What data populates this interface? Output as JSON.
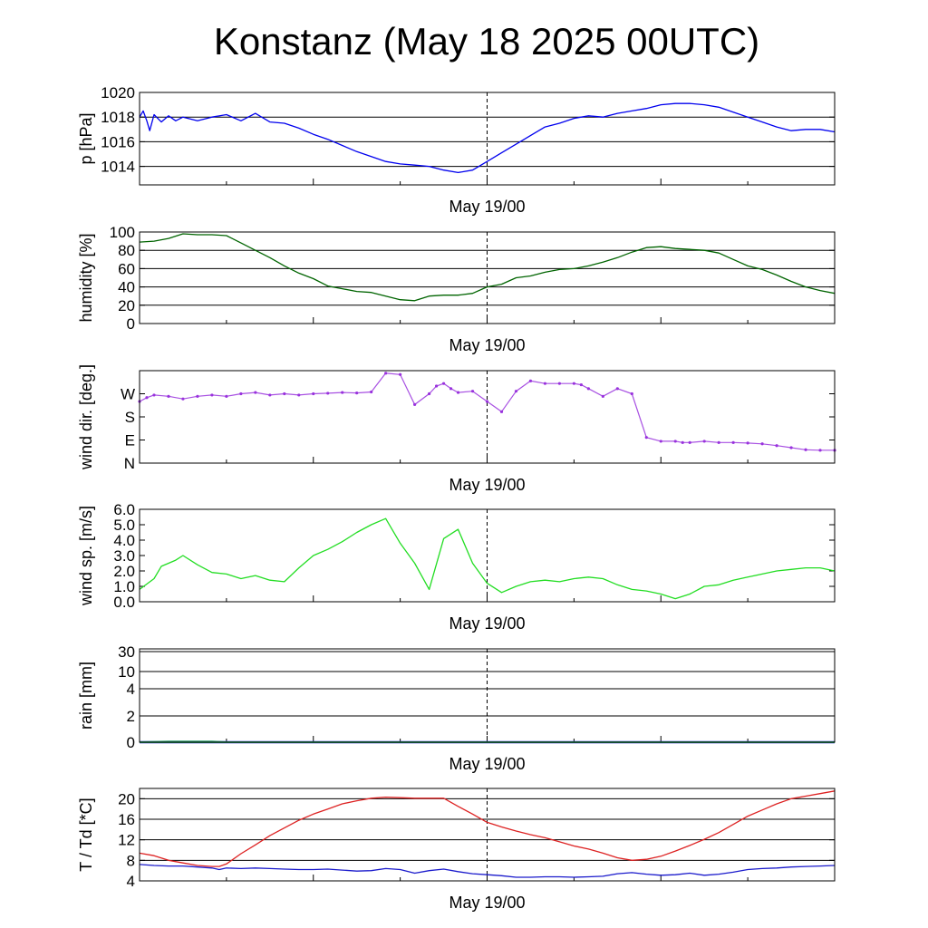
{
  "title": "Konstanz (May 18 2025 00UTC)",
  "time_axis": {
    "label": "May 19/00",
    "range_hours": [
      0,
      48
    ],
    "marker_hour": 24
  },
  "chart_data": [
    {
      "id": "pressure",
      "type": "line",
      "ylabel": "p [hPa]",
      "ylim": [
        1012.5,
        1020
      ],
      "yticks": [
        1014,
        1016,
        1018,
        1020
      ],
      "tick_labels": [
        "1014",
        "1016",
        "1018",
        "1020"
      ],
      "gridlines": [
        1014,
        1016,
        1018
      ],
      "x": [
        0,
        0.25,
        0.5,
        0.7,
        1,
        1.5,
        2,
        2.5,
        3,
        4,
        5,
        6,
        7,
        8,
        9,
        10,
        11,
        12,
        13,
        14,
        15,
        16,
        17,
        18,
        19,
        20,
        21,
        22,
        23,
        24,
        25,
        26,
        27,
        28,
        29,
        30,
        31,
        32,
        33,
        34,
        35,
        36,
        37,
        38,
        39,
        40,
        41,
        42,
        43,
        44,
        45,
        46,
        47,
        48
      ],
      "series": [
        {
          "color": "#0000ee",
          "values": [
            1018,
            1018.5,
            1017.7,
            1016.9,
            1018.2,
            1017.6,
            1018.1,
            1017.7,
            1018,
            1017.7,
            1018,
            1018.2,
            1017.7,
            1018.3,
            1017.6,
            1017.5,
            1017.1,
            1016.6,
            1016.2,
            1015.7,
            1015.2,
            1014.8,
            1014.4,
            1014.2,
            1014.1,
            1014,
            1013.7,
            1013.5,
            1013.7,
            1014.4,
            1015.1,
            1015.8,
            1016.5,
            1017.2,
            1017.5,
            1017.9,
            1018.1,
            1018,
            1018.3,
            1018.5,
            1018.7,
            1019,
            1019.1,
            1019.1,
            1019,
            1018.8,
            1018.4,
            1018,
            1017.6,
            1017.2,
            1016.9,
            1017.0,
            1017.0,
            1016.8
          ]
        }
      ]
    },
    {
      "id": "humidity",
      "type": "line",
      "ylabel": "humidity [%]",
      "ylim": [
        0,
        100
      ],
      "yticks": [
        0,
        20,
        40,
        60,
        80,
        100
      ],
      "tick_labels": [
        "0",
        "20",
        "40",
        "60",
        "80",
        "100"
      ],
      "gridlines": [
        20,
        40,
        60,
        80
      ],
      "x": [
        0,
        1,
        2,
        3,
        4,
        5,
        6,
        7,
        8,
        9,
        10,
        11,
        12,
        13,
        14,
        15,
        16,
        17,
        18,
        19,
        20,
        21,
        22,
        23,
        24,
        25,
        26,
        27,
        28,
        29,
        30,
        31,
        32,
        33,
        34,
        35,
        36,
        37,
        38,
        39,
        40,
        41,
        42,
        43,
        44,
        45,
        46,
        47,
        48
      ],
      "series": [
        {
          "color": "#006400",
          "values": [
            89,
            90,
            93,
            98,
            97,
            97,
            96,
            88,
            80,
            72,
            63,
            55,
            49,
            41,
            38,
            35,
            34,
            30,
            26,
            25,
            30,
            31,
            31,
            33,
            40,
            43,
            50,
            52,
            56,
            59,
            60,
            63,
            67,
            72,
            78,
            83,
            84,
            82,
            81,
            80,
            77,
            70,
            63,
            59,
            53,
            46,
            40,
            36,
            33
          ]
        }
      ]
    },
    {
      "id": "wind_direction",
      "type": "scatter",
      "ylabel": "wind dir. [deg.]",
      "ylim": [
        0,
        360
      ],
      "yticks": [
        0,
        90,
        180,
        270
      ],
      "tick_labels": [
        "N",
        "E",
        "S",
        "W"
      ],
      "gridlines": [],
      "x": [
        0,
        0.5,
        1,
        2,
        3,
        4,
        5,
        6,
        7,
        8,
        9,
        10,
        11,
        12,
        13,
        14,
        15,
        16,
        17,
        18,
        19,
        20,
        20.5,
        21,
        21.5,
        22,
        23,
        24,
        25,
        26,
        27,
        28,
        29,
        30,
        30.5,
        31,
        32,
        33,
        34,
        35,
        36,
        37,
        37.5,
        38,
        39,
        40,
        41,
        42,
        43,
        44,
        45,
        46,
        47,
        48
      ],
      "series": [
        {
          "color": "#9933dd",
          "values": [
            240,
            255,
            265,
            260,
            250,
            260,
            265,
            260,
            270,
            275,
            265,
            270,
            265,
            270,
            272,
            275,
            273,
            277,
            350,
            345,
            228,
            270,
            300,
            310,
            290,
            275,
            280,
            240,
            200,
            280,
            320,
            310,
            310,
            310,
            305,
            290,
            260,
            290,
            270,
            100,
            85,
            85,
            80,
            80,
            85,
            80,
            80,
            78,
            75,
            68,
            60,
            52,
            50,
            50
          ]
        }
      ]
    },
    {
      "id": "wind_speed",
      "type": "line",
      "ylabel": "wind sp. [m/s]",
      "ylim": [
        0,
        6
      ],
      "yticks": [
        0,
        1,
        2,
        3,
        4,
        5,
        6
      ],
      "tick_labels": [
        "0.0",
        "1.0",
        "2.0",
        "3.0",
        "4.0",
        "5.0",
        "6.0"
      ],
      "gridlines": [],
      "x": [
        0,
        1,
        1.5,
        2,
        2.5,
        3,
        4,
        5,
        6,
        7,
        8,
        9,
        10,
        11,
        12,
        13,
        14,
        15,
        16,
        17,
        18,
        19,
        20,
        21,
        22,
        23,
        24,
        25,
        26,
        27,
        28,
        29,
        30,
        31,
        32,
        33,
        34,
        35,
        36,
        37,
        38,
        39,
        40,
        41,
        42,
        43,
        44,
        45,
        46,
        47,
        48
      ],
      "series": [
        {
          "color": "#22dd22",
          "values": [
            0.8,
            1.5,
            2.3,
            2.5,
            2.7,
            3.0,
            2.4,
            1.9,
            1.8,
            1.5,
            1.7,
            1.4,
            1.3,
            2.2,
            3.0,
            3.4,
            3.9,
            4.5,
            5.0,
            5.4,
            3.8,
            2.5,
            0.8,
            4.1,
            4.7,
            2.5,
            1.2,
            0.6,
            1.0,
            1.3,
            1.4,
            1.3,
            1.5,
            1.6,
            1.5,
            1.1,
            0.8,
            0.7,
            0.5,
            0.2,
            0.5,
            1.0,
            1.1,
            1.4,
            1.6,
            1.8,
            2.0,
            2.1,
            2.2,
            2.2,
            2.0
          ]
        }
      ]
    },
    {
      "id": "rain",
      "type": "area",
      "ylabel": "rain [mm]",
      "scale": "nonlinear",
      "yticks": [
        0,
        2,
        4,
        10,
        30
      ],
      "tick_labels": [
        "0",
        "2",
        "4",
        "10",
        "30"
      ],
      "gridlines": [
        2,
        4,
        10,
        30
      ],
      "x": [
        0,
        2,
        5,
        6,
        48
      ],
      "series": [
        {
          "color": "#2222dd",
          "values": [
            0,
            0,
            0,
            0,
            0
          ]
        },
        {
          "color": "#2a9a6a",
          "values": [
            0,
            0.05,
            0.05,
            0,
            0
          ]
        }
      ]
    },
    {
      "id": "temperature",
      "type": "line",
      "ylabel": "T / Td [*C]",
      "ylim": [
        4,
        22
      ],
      "yticks": [
        4,
        8,
        12,
        16,
        20
      ],
      "tick_labels": [
        "4",
        "8",
        "12",
        "16",
        "20"
      ],
      "gridlines": [
        8,
        12,
        16,
        20
      ],
      "x": [
        0,
        1,
        2,
        3,
        4,
        5,
        5.5,
        6,
        7,
        8,
        9,
        10,
        11,
        12,
        13,
        14,
        15,
        16,
        17,
        18,
        19,
        20,
        21,
        22,
        23,
        24,
        25,
        26,
        27,
        28,
        29,
        30,
        31,
        32,
        33,
        34,
        35,
        36,
        37,
        38,
        39,
        40,
        41,
        42,
        43,
        44,
        45,
        46,
        47,
        48
      ],
      "series": [
        {
          "color": "#dd2222",
          "values": [
            9.4,
            8.9,
            8,
            7.5,
            7,
            6.8,
            6.8,
            7.3,
            9.3,
            11,
            12.8,
            14.3,
            15.8,
            17,
            18,
            19,
            19.6,
            20.1,
            20.3,
            20.2,
            20.1,
            20.1,
            20.1,
            18.5,
            17,
            15.4,
            14.5,
            13.7,
            13,
            12.4,
            11.6,
            10.8,
            10.2,
            9.4,
            8.5,
            8.0,
            8.2,
            8.8,
            9.8,
            10.9,
            12.1,
            13.4,
            15,
            16.6,
            17.8,
            19,
            20,
            20.5,
            21.0,
            21.5
          ]
        },
        {
          "color": "#1a1acc",
          "values": [
            7.2,
            7,
            6.9,
            6.9,
            6.7,
            6.5,
            6.2,
            6.5,
            6.4,
            6.5,
            6.4,
            6.3,
            6.2,
            6.2,
            6.3,
            6.1,
            5.9,
            6.0,
            6.4,
            6.2,
            5.5,
            6.0,
            6.3,
            5.8,
            5.4,
            5.2,
            5.0,
            4.7,
            4.7,
            4.8,
            4.8,
            4.7,
            4.8,
            4.9,
            5.4,
            5.6,
            5.3,
            5.1,
            5.2,
            5.5,
            5.1,
            5.3,
            5.7,
            6.2,
            6.4,
            6.5,
            6.7,
            6.8,
            6.9,
            7.0
          ]
        }
      ]
    }
  ]
}
